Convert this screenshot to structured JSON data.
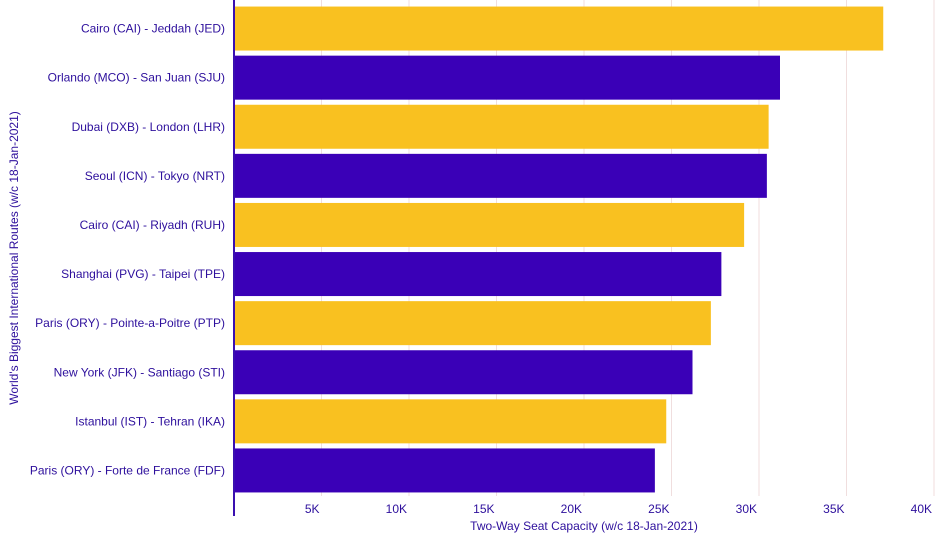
{
  "chart_data": {
    "type": "bar",
    "orientation": "horizontal",
    "categories": [
      "Cairo (CAI) - Jeddah (JED)",
      "Orlando (MCO) - San Juan (SJU)",
      "Dubai (DXB) - London (LHR)",
      "Seoul (ICN) - Tokyo (NRT)",
      "Cairo (CAI) - Riyadh (RUH)",
      "Shanghai (PVG) - Taipei (TPE)",
      "Paris (ORY) - Pointe-a-Poitre (PTP)",
      "New York (JFK) - Santiago (STI)",
      "Istanbul (IST) - Tehran (IKA)",
      "Paris (ORY) - Forte de France (FDF)"
    ],
    "values": [
      37100,
      31200,
      30550,
      30450,
      29150,
      27850,
      27250,
      26200,
      24700,
      24050
    ],
    "xlabel": "Two-Way Seat Capacity (w/c 18-Jan-2021)",
    "ylabel": "World's Biggest International Routes (w/c 18-Jan-2021)",
    "xlim": [
      0,
      40000
    ],
    "xticks": [
      5000,
      10000,
      15000,
      20000,
      25000,
      30000,
      35000,
      40000
    ],
    "xtick_labels": [
      "5K",
      "10K",
      "15K",
      "20K",
      "25K",
      "30K",
      "35K",
      "40K"
    ],
    "grid": "vertical",
    "colors": {
      "bar_primary": "#f9c120",
      "bar_secondary": "#3a00b7",
      "text": "#2d0f9c",
      "axis": "#3a0fb0",
      "grid": "#f0dede"
    }
  }
}
